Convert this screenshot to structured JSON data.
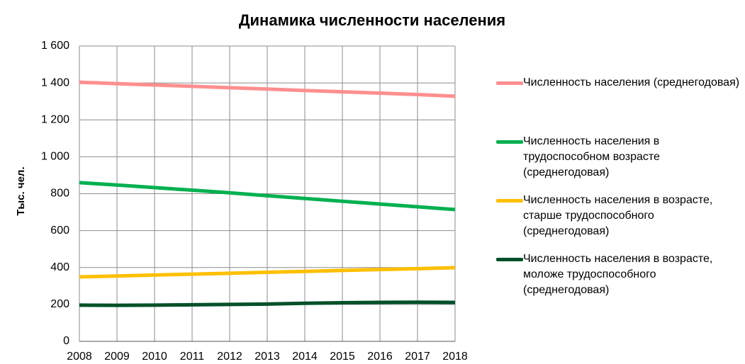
{
  "chart_data": {
    "type": "line",
    "title": "Динамика численности населения",
    "y_label": "Тыс. чел.",
    "x": [
      2008,
      2009,
      2010,
      2011,
      2012,
      2013,
      2014,
      2015,
      2016,
      2017,
      2018
    ],
    "xlim": [
      2008,
      2018
    ],
    "xticks": [
      2008,
      2009,
      2010,
      2011,
      2012,
      2013,
      2014,
      2015,
      2016,
      2017,
      2018
    ],
    "ylim": [
      0,
      1600
    ],
    "yticks": [
      0,
      200,
      400,
      600,
      800,
      {
        "value": 1000,
        "label": "1 000"
      },
      {
        "value": 1200,
        "label": "1 200"
      },
      {
        "value": 1400,
        "label": "1 400"
      },
      {
        "value": 1600,
        "label": "1 600"
      }
    ],
    "grid": true,
    "legend": "right",
    "series": [
      {
        "name": "Численность населения (среднегодовая)",
        "color": "#ff8f8f",
        "values": [
          1404,
          1396,
          1389,
          1382,
          1374,
          1367,
          1359,
          1352,
          1345,
          1337,
          1328
        ]
      },
      {
        "name": "Численность населения в трудоспособном возрасте (среднегодовая)",
        "color": "#00b050",
        "values": [
          860,
          847,
          833,
          819,
          805,
          789,
          774,
          759,
          744,
          729,
          714
        ]
      },
      {
        "name": "Численность населения в возрасте, старше трудоспособного (среднегодовая)",
        "color": "#ffc000",
        "values": [
          349,
          354,
          359,
          364,
          369,
          374,
          379,
          384,
          389,
          394,
          399
        ]
      },
      {
        "name": "Численность населения в возрасте, моложе трудоспособного (среднегодовая)",
        "color": "#00502a",
        "values": [
          196,
          195,
          196,
          198,
          200,
          202,
          206,
          209,
          211,
          212,
          211
        ]
      }
    ]
  }
}
